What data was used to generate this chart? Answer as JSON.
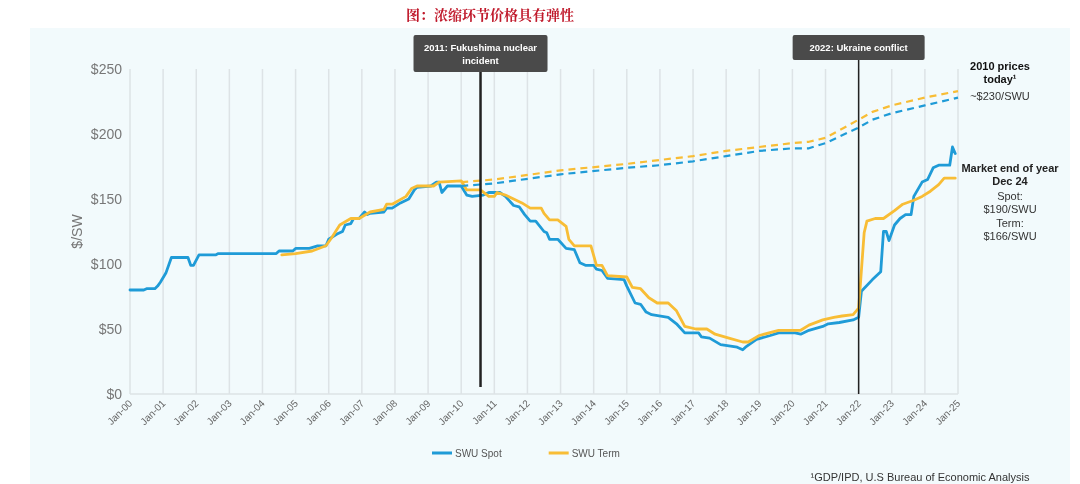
{
  "chart_data": {
    "type": "line",
    "title": "图：浓缩环节价格具有弹性",
    "ylabel": "$/SW",
    "xlim": [
      "2000-01",
      "2025-01"
    ],
    "ylim": [
      0,
      250
    ],
    "xticks": [
      {
        "value": "2000-01",
        "label": "Jan-00"
      },
      {
        "value": "2001-01",
        "label": "Jan-01"
      },
      {
        "value": "2002-01",
        "label": "Jan-02"
      },
      {
        "value": "2003-01",
        "label": "Jan-03"
      },
      {
        "value": "2004-01",
        "label": "Jan-04"
      },
      {
        "value": "2005-01",
        "label": "Jan-05"
      },
      {
        "value": "2006-01",
        "label": "Jan-06"
      },
      {
        "value": "2007-01",
        "label": "Jan-07"
      },
      {
        "value": "2008-01",
        "label": "Jan-08"
      },
      {
        "value": "2009-01",
        "label": "Jan-09"
      },
      {
        "value": "2010-01",
        "label": "Jan-10"
      },
      {
        "value": "2011-01",
        "label": "Jan-11"
      },
      {
        "value": "2012-01",
        "label": "Jan-12"
      },
      {
        "value": "2013-01",
        "label": "Jan-13"
      },
      {
        "value": "2014-01",
        "label": "Jan-14"
      },
      {
        "value": "2015-01",
        "label": "Jan-15"
      },
      {
        "value": "2016-01",
        "label": "Jan-16"
      },
      {
        "value": "2017-01",
        "label": "Jan-17"
      },
      {
        "value": "2018-01",
        "label": "Jan-18"
      },
      {
        "value": "2019-01",
        "label": "Jan-19"
      },
      {
        "value": "2020-01",
        "label": "Jan-20"
      },
      {
        "value": "2021-01",
        "label": "Jan-21"
      },
      {
        "value": "2022-01",
        "label": "Jan-22"
      },
      {
        "value": "2023-01",
        "label": "Jan-23"
      },
      {
        "value": "2024-01",
        "label": "Jan-24"
      },
      {
        "value": "2025-01",
        "label": "Jan-25"
      }
    ],
    "yticks": [
      {
        "value": 0,
        "label": "$0"
      },
      {
        "value": 50,
        "label": "$50"
      },
      {
        "value": 100,
        "label": "$100"
      },
      {
        "value": 150,
        "label": "$150"
      },
      {
        "value": 200,
        "label": "$200"
      },
      {
        "value": 250,
        "label": "$250"
      }
    ],
    "grid": "x",
    "legend": "bottom",
    "marker": "none",
    "series": [
      {
        "name": "SWU Spot",
        "color": "#1f9bd7",
        "line_style": "solid",
        "x": [
          "2000-01",
          "2000-06",
          "2000-07",
          "2000-10",
          "2000-11",
          "2000-12",
          "2001-02",
          "2001-04",
          "2001-10",
          "2001-11",
          "2001-12",
          "2002-02",
          "2002-08",
          "2002-09",
          "2004-06",
          "2004-07",
          "2004-12",
          "2005-01",
          "2005-06",
          "2005-09",
          "2005-12",
          "2006-01",
          "2006-04",
          "2006-06",
          "2006-07",
          "2006-09",
          "2006-10",
          "2006-12",
          "2007-02",
          "2007-03",
          "2007-04",
          "2007-09",
          "2007-10",
          "2007-12",
          "2008-03",
          "2008-06",
          "2008-08",
          "2008-09",
          "2009-02",
          "2009-04",
          "2009-05",
          "2009-06",
          "2009-08",
          "2010-01",
          "2010-03",
          "2010-05",
          "2010-09",
          "2010-11",
          "2011-03",
          "2011-05",
          "2011-08",
          "2011-10",
          "2011-12",
          "2012-02",
          "2012-04",
          "2012-07",
          "2012-08",
          "2012-09",
          "2012-12",
          "2013-03",
          "2013-06",
          "2013-08",
          "2013-10",
          "2014-01",
          "2014-02",
          "2014-04",
          "2014-06",
          "2014-12",
          "2015-01",
          "2015-04",
          "2015-06",
          "2015-08",
          "2015-10",
          "2016-04",
          "2016-07",
          "2016-10",
          "2017-03",
          "2017-04",
          "2017-07",
          "2017-11",
          "2018-05",
          "2018-07",
          "2018-08",
          "2018-12",
          "2019-05",
          "2019-08",
          "2020-02",
          "2020-04",
          "2020-07",
          "2020-12",
          "2021-02",
          "2021-06",
          "2021-11",
          "2022-01",
          "2022-02",
          "2022-06",
          "2022-09",
          "2022-10",
          "2022-11",
          "2022-12",
          "2023-02",
          "2023-04",
          "2023-06",
          "2023-08",
          "2023-09",
          "2023-12",
          "2024-02",
          "2024-04",
          "2024-06",
          "2024-10",
          "2024-11",
          "2024-12"
        ],
        "values": [
          80,
          80,
          81,
          81,
          83,
          86,
          93,
          105,
          105,
          99,
          99,
          107,
          107,
          108,
          108,
          110,
          110,
          112,
          112,
          114,
          114,
          119,
          123,
          125,
          130,
          131,
          135,
          135,
          140,
          138,
          139,
          140,
          143,
          143,
          147,
          150,
          157,
          159,
          160,
          163,
          163,
          155,
          160,
          160,
          153,
          152,
          153,
          155,
          155,
          152,
          145,
          144,
          138,
          133,
          133,
          125,
          124,
          119,
          119,
          112,
          111,
          101,
          99,
          99,
          96,
          95,
          89,
          88,
          83,
          70,
          69,
          63,
          61,
          59,
          54,
          47,
          47,
          44,
          43,
          38,
          36,
          34,
          36,
          42,
          45,
          47,
          47,
          46,
          49,
          52,
          54,
          55,
          57,
          59,
          79,
          88,
          94,
          125,
          125,
          118,
          130,
          135,
          138,
          138,
          152,
          163,
          165,
          174,
          176,
          176,
          190,
          185
        ]
      },
      {
        "name": "SWU Term",
        "color": "#f8bd35",
        "line_style": "solid",
        "x": [
          "2004-08",
          "2005-01",
          "2005-07",
          "2005-12",
          "2006-02",
          "2006-05",
          "2006-09",
          "2006-12",
          "2007-04",
          "2007-09",
          "2007-10",
          "2007-12",
          "2008-05",
          "2008-07",
          "2008-09",
          "2009-03",
          "2009-05",
          "2010-01",
          "2010-03",
          "2010-08",
          "2010-11",
          "2011-01",
          "2011-02",
          "2011-05",
          "2011-08",
          "2011-11",
          "2012-02",
          "2012-06",
          "2012-07",
          "2012-09",
          "2012-12",
          "2013-03",
          "2013-04",
          "2013-06",
          "2013-12",
          "2014-02",
          "2014-04",
          "2014-06",
          "2015-01",
          "2015-03",
          "2015-06",
          "2015-09",
          "2015-12",
          "2016-04",
          "2016-07",
          "2016-10",
          "2017-02",
          "2017-06",
          "2017-09",
          "2018-02",
          "2018-07",
          "2018-09",
          "2019-01",
          "2019-08",
          "2020-04",
          "2020-07",
          "2020-12",
          "2021-04",
          "2021-07",
          "2021-11",
          "2022-01",
          "2022-03",
          "2022-04",
          "2022-07",
          "2022-10",
          "2023-02",
          "2023-05",
          "2023-09",
          "2023-12",
          "2024-03",
          "2024-06",
          "2024-08",
          "2024-12"
        ],
        "values": [
          107,
          108,
          110,
          114,
          120,
          130,
          135,
          135,
          140,
          142,
          146,
          146,
          152,
          158,
          160,
          160,
          163,
          164,
          157,
          157,
          152,
          152,
          155,
          153,
          150,
          147,
          143,
          143,
          139,
          134,
          134,
          129,
          119,
          114,
          114,
          99,
          99,
          91,
          90,
          82,
          81,
          74,
          70,
          70,
          64,
          52,
          50,
          50,
          46,
          43,
          40,
          40,
          45,
          49,
          49,
          53,
          57,
          59,
          60,
          61,
          66,
          124,
          133,
          135,
          135,
          141,
          146,
          149,
          152,
          156,
          161,
          166,
          166
        ]
      },
      {
        "color": "#1f9bd7",
        "line_style": "dashed",
        "x": [
          "2010-01",
          "2011-01",
          "2013-01",
          "2015-01",
          "2016-01",
          "2017-01",
          "2018-01",
          "2019-01",
          "2020-01",
          "2020-07",
          "2021-01",
          "2022-01",
          "2022-06",
          "2023-01",
          "2024-01",
          "2025-01"
        ],
        "values": [
          160,
          162,
          169,
          174,
          176,
          179,
          183,
          187,
          189,
          189,
          193,
          205,
          211,
          216,
          222,
          228
        ]
      },
      {
        "color": "#f8bd35",
        "line_style": "dashed",
        "x": [
          "2010-01",
          "2011-01",
          "2013-01",
          "2015-01",
          "2016-01",
          "2017-01",
          "2018-01",
          "2019-01",
          "2020-01",
          "2020-07",
          "2021-01",
          "2022-01",
          "2022-06",
          "2023-01",
          "2024-01",
          "2025-01"
        ],
        "values": [
          163,
          165,
          172,
          177,
          180,
          183,
          187,
          190,
          193,
          194,
          197,
          211,
          217,
          222,
          228,
          233
        ]
      }
    ],
    "ref_lines": [
      {
        "axis": "x",
        "value": "2010-08",
        "label": "2011: Fukushima nuclear incident",
        "color": "#222222"
      },
      {
        "axis": "x",
        "value": "2022-01",
        "label": "2022: Ukraine conflict",
        "color": "#222222"
      }
    ],
    "annotations": [
      "2010 prices today¹",
      "~$230/SWU",
      "Market end of year Dec 24",
      "Spot: $190/SWU",
      "Term: $166/SWU",
      "¹GDP/IPD, U.S Bureau of Economic Analysis"
    ]
  }
}
